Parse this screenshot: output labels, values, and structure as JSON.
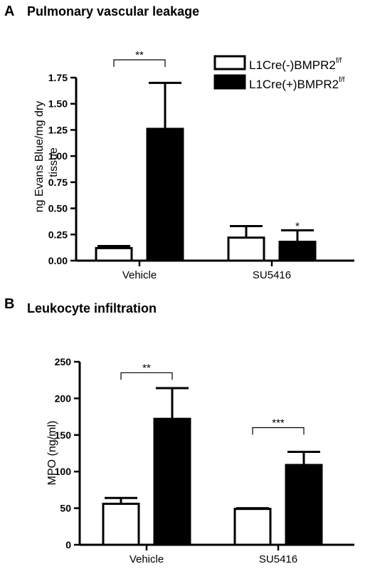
{
  "chart_data": [
    {
      "panel": "A",
      "type": "bar",
      "title": "Pulmonary vascular leakage",
      "ylabel": "ng Evans Blue/mg dry tissue",
      "ylabel_lines": [
        "ng Evans Blue/mg dry",
        "tissue"
      ],
      "ylim": [
        0,
        1.75
      ],
      "yticks": [
        "0.00",
        "0.25",
        "0.50",
        "0.75",
        "1.00",
        "1.25",
        "1.50",
        "1.75"
      ],
      "categories": [
        "Vehicle",
        "SU5416"
      ],
      "series": [
        {
          "name": "L1Cre(-)BMPR2",
          "name_sup": "f/f",
          "fill": "#ffffff",
          "values": [
            0.12,
            0.22
          ],
          "errors": [
            0.02,
            0.11
          ]
        },
        {
          "name": "L1Cre(+)BMPR2",
          "name_sup": "f/f",
          "fill": "#000000",
          "values": [
            1.26,
            0.18
          ],
          "errors": [
            0.44,
            0.11
          ]
        }
      ],
      "significance": [
        {
          "label": "**",
          "kind": "bracket",
          "category": 0,
          "at": 1.92
        },
        {
          "label": "*",
          "kind": "star",
          "category": 1,
          "series": 1,
          "at": 0.31
        }
      ]
    },
    {
      "panel": "B",
      "type": "bar",
      "title": "Leukocyte infiltration",
      "ylabel": "MPO (ng/ml)",
      "ylim": [
        0,
        250
      ],
      "yticks": [
        "0",
        "50",
        "100",
        "150",
        "200",
        "250"
      ],
      "categories": [
        "Vehicle",
        "SU5416"
      ],
      "series": [
        {
          "name": "L1Cre(-)BMPR2",
          "name_sup": "f/f",
          "fill": "#ffffff",
          "values": [
            56,
            49
          ],
          "errors": [
            8,
            1
          ]
        },
        {
          "name": "L1Cre(+)BMPR2",
          "name_sup": "f/f",
          "fill": "#000000",
          "values": [
            172,
            109
          ],
          "errors": [
            42,
            18
          ]
        }
      ],
      "significance": [
        {
          "label": "**",
          "kind": "bracket",
          "category": 0,
          "at": 235
        },
        {
          "label": "***",
          "kind": "bracket",
          "category": 1,
          "at": 160
        }
      ]
    }
  ]
}
